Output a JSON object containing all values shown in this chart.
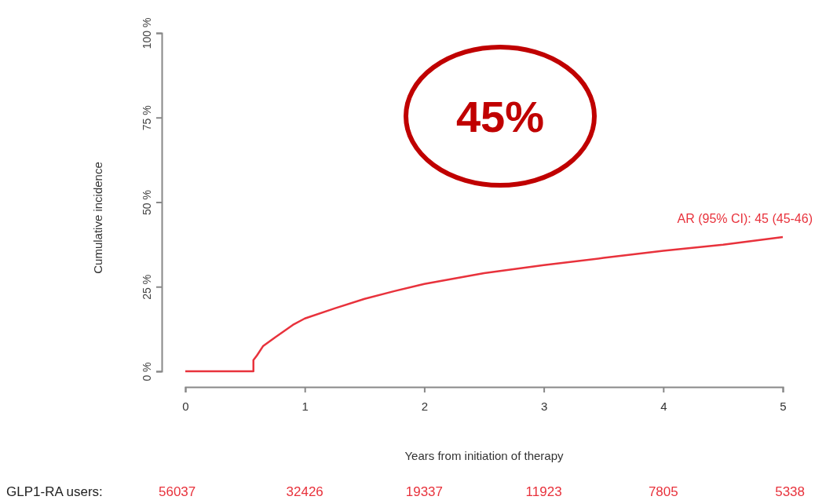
{
  "chart_data": {
    "type": "line",
    "xlabel": "Years from initiation of therapy",
    "ylabel": "Cumulative incidence",
    "x": [
      0,
      0.57,
      0.57,
      0.6,
      0.65,
      0.75,
      0.9,
      1.0,
      1.25,
      1.5,
      1.75,
      2.0,
      2.5,
      3.0,
      3.5,
      4.0,
      4.5,
      5.0
    ],
    "series": [
      {
        "color": "#e8323c",
        "values": [
          0,
          0,
          3.3,
          4.7,
          7.4,
          10,
          13.7,
          15.6,
          18.6,
          21.4,
          23.7,
          25.8,
          29,
          31.4,
          33.5,
          35.6,
          37.4,
          39.7
        ]
      }
    ],
    "xlim": [
      0,
      5
    ],
    "xticks": [
      0,
      1,
      2,
      3,
      4,
      5
    ],
    "ylim": [
      0,
      100
    ],
    "yticks": [
      {
        "value": 0,
        "label": "0 %"
      },
      {
        "value": 25,
        "label": "25 %"
      },
      {
        "value": 50,
        "label": "50 %"
      },
      {
        "value": 75,
        "label": "75 %"
      },
      {
        "value": 100,
        "label": "100 %"
      }
    ],
    "annotations": [
      "45%",
      {
        "text": "AR (95% CI): 45 (45-46)",
        "x": 5,
        "y": 39.7
      },
      "GLP1-RA users:",
      "56037",
      "32426",
      "19337",
      "11923",
      "7805",
      "5338"
    ]
  }
}
